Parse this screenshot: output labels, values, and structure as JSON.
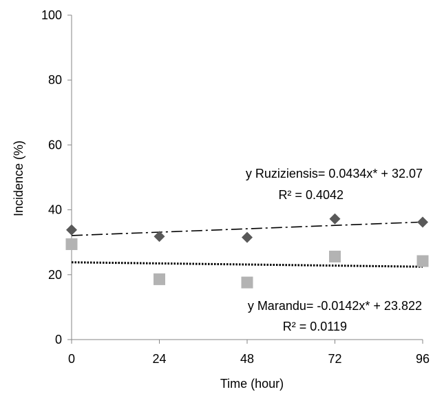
{
  "chart_data": {
    "type": "scatter",
    "title": "",
    "xlabel": "Time (hour)",
    "ylabel": "Incidence (%)",
    "xlim": [
      0,
      96
    ],
    "ylim": [
      0,
      100
    ],
    "x_ticks": [
      0,
      24,
      48,
      72,
      96
    ],
    "y_ticks": [
      0,
      20,
      40,
      60,
      80,
      100
    ],
    "x_tick_labels": [
      "0",
      "24",
      "48",
      "72",
      "96"
    ],
    "y_tick_labels": [
      "0",
      "20",
      "40",
      "60",
      "80",
      "100"
    ],
    "grid": false,
    "legend": "none",
    "series": [
      {
        "marker": "diamond",
        "color": "#595959",
        "x": [
          0,
          24,
          48,
          72,
          96
        ],
        "y": [
          33.8,
          31.8,
          31.5,
          37.2,
          36.2
        ],
        "trendline": {
          "slope": 0.0434,
          "intercept": 32.07,
          "style": "dash-dot",
          "color": "#000000"
        },
        "equation_label": "y Ruziziensis= 0.0434x* + 32.07",
        "r2_label": "R² = 0.4042"
      },
      {
        "marker": "square",
        "color": "#b3b3b3",
        "x": [
          0,
          24,
          48,
          72,
          96
        ],
        "y": [
          29.4,
          18.6,
          17.6,
          25.6,
          24.2
        ],
        "trendline": {
          "slope": -0.0142,
          "intercept": 23.822,
          "style": "dotted",
          "color": "#000000"
        },
        "equation_label": "y Marandu= -0.0142x* + 23.822",
        "r2_label": "R² = 0.0119"
      }
    ]
  }
}
